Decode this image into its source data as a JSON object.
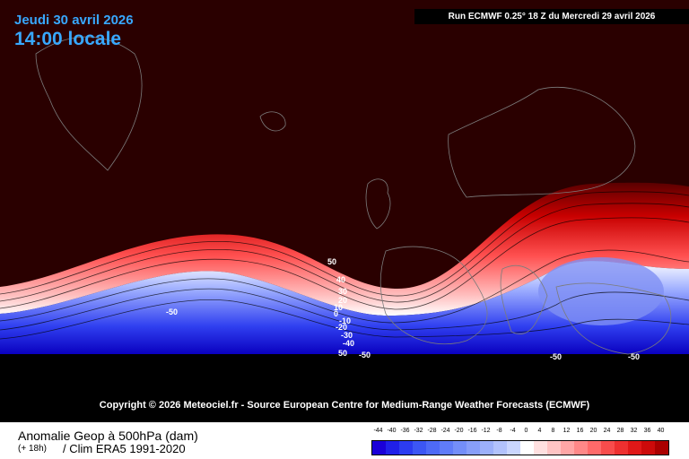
{
  "header": {
    "date": "Jeudi 30 avril 2026",
    "time": "14:00 locale",
    "run": "Run ECMWF 0.25° 18 Z du Mercredi 29 avril 2026"
  },
  "copyright": "Copyright © 2026 Meteociel.fr - Source European Centre for Medium-Range Weather Forecasts (ECMWF)",
  "contour_labels": [
    "50",
    "40",
    "30",
    "20",
    "10",
    "0",
    "-10",
    "-20",
    "-30",
    "-40",
    "-50",
    "-50",
    "-50",
    "-50",
    "50"
  ],
  "legend": {
    "title": "Anomalie Geop à 500hPa (dam)",
    "lead": "(+ 18h)",
    "clim": "/ Clim ERA5 1991-2020",
    "ticks": [
      "-44",
      "-40",
      "-36",
      "-32",
      "-28",
      "-24",
      "-20",
      "-16",
      "-12",
      "-8",
      "-4",
      "0",
      "4",
      "8",
      "12",
      "16",
      "20",
      "24",
      "28",
      "32",
      "36",
      "40"
    ],
    "colors": [
      "#1a00d8",
      "#2020e8",
      "#2c3cf0",
      "#3c56f4",
      "#4e6af6",
      "#607cf8",
      "#748ef8",
      "#889ef8",
      "#9cb0fa",
      "#b2c2fc",
      "#cad6fe",
      "#ffffff",
      "#ffe0e0",
      "#ffc4c4",
      "#ffa6a6",
      "#ff8888",
      "#ff6a6a",
      "#f84c4c",
      "#ee3030",
      "#e01818",
      "#cc0a0a",
      "#aa0000"
    ]
  },
  "colors": {
    "background_anomaly": "#2a0000",
    "land_outline": "#7c7c7c",
    "title_color": "#38a8ff"
  }
}
